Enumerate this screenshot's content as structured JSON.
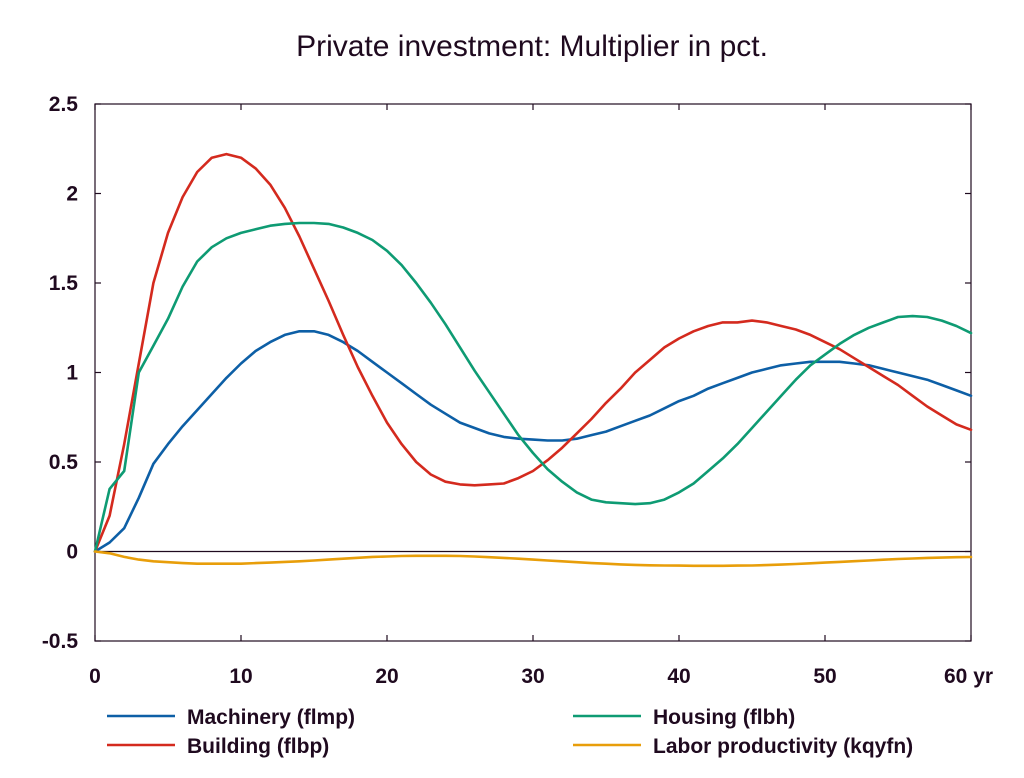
{
  "chart_data": {
    "type": "line",
    "title": "Private investment: Multiplier in pct.",
    "xlabel": "",
    "ylabel": "",
    "x_unit_label": "yr",
    "xlim": [
      0,
      60
    ],
    "ylim": [
      -0.5,
      2.5
    ],
    "xticks": [
      "0",
      "10",
      "20",
      "30",
      "40",
      "50",
      "60 yr"
    ],
    "yticks": [
      "2.5",
      "2",
      "1.5",
      "1",
      "0.5",
      "0",
      "-0.5"
    ],
    "grid": false,
    "legend_position": "bottom",
    "x": [
      0,
      1,
      2,
      3,
      4,
      5,
      6,
      7,
      8,
      9,
      10,
      11,
      12,
      13,
      14,
      15,
      16,
      17,
      18,
      19,
      20,
      21,
      22,
      23,
      24,
      25,
      26,
      27,
      28,
      29,
      30,
      31,
      32,
      33,
      34,
      35,
      36,
      37,
      38,
      39,
      40,
      41,
      42,
      43,
      44,
      45,
      46,
      47,
      48,
      49,
      50,
      51,
      52,
      53,
      54,
      55,
      56,
      57,
      58,
      59,
      60
    ],
    "series": [
      {
        "name": "Machinery (flmp)",
        "color": "#0d5fa6",
        "values": [
          0,
          0.05,
          0.13,
          0.3,
          0.49,
          0.6,
          0.7,
          0.79,
          0.88,
          0.97,
          1.05,
          1.12,
          1.17,
          1.21,
          1.23,
          1.23,
          1.21,
          1.17,
          1.12,
          1.06,
          1.0,
          0.94,
          0.88,
          0.82,
          0.77,
          0.72,
          0.69,
          0.66,
          0.64,
          0.63,
          0.625,
          0.62,
          0.62,
          0.63,
          0.65,
          0.67,
          0.7,
          0.73,
          0.76,
          0.8,
          0.84,
          0.87,
          0.91,
          0.94,
          0.97,
          1.0,
          1.02,
          1.04,
          1.05,
          1.06,
          1.06,
          1.06,
          1.05,
          1.04,
          1.02,
          1.0,
          0.98,
          0.96,
          0.93,
          0.9,
          0.87
        ]
      },
      {
        "name": "Building (flbp)",
        "color": "#d42a1e",
        "values": [
          0,
          0.2,
          0.6,
          1.05,
          1.5,
          1.78,
          1.98,
          2.12,
          2.2,
          2.22,
          2.2,
          2.14,
          2.05,
          1.92,
          1.76,
          1.58,
          1.4,
          1.21,
          1.03,
          0.87,
          0.72,
          0.6,
          0.5,
          0.43,
          0.39,
          0.375,
          0.37,
          0.375,
          0.38,
          0.41,
          0.45,
          0.51,
          0.58,
          0.66,
          0.74,
          0.83,
          0.91,
          1.0,
          1.07,
          1.14,
          1.19,
          1.23,
          1.26,
          1.28,
          1.28,
          1.29,
          1.28,
          1.26,
          1.24,
          1.21,
          1.17,
          1.13,
          1.08,
          1.03,
          0.98,
          0.93,
          0.87,
          0.81,
          0.76,
          0.71,
          0.68
        ]
      },
      {
        "name": "Housing (flbh)",
        "color": "#0e9b73",
        "values": [
          0,
          0.35,
          0.45,
          1.0,
          1.15,
          1.3,
          1.48,
          1.62,
          1.7,
          1.75,
          1.78,
          1.8,
          1.82,
          1.83,
          1.835,
          1.835,
          1.83,
          1.81,
          1.78,
          1.74,
          1.68,
          1.6,
          1.5,
          1.39,
          1.27,
          1.14,
          1.01,
          0.89,
          0.77,
          0.65,
          0.55,
          0.46,
          0.39,
          0.33,
          0.29,
          0.275,
          0.27,
          0.265,
          0.27,
          0.29,
          0.33,
          0.38,
          0.45,
          0.52,
          0.6,
          0.69,
          0.78,
          0.87,
          0.96,
          1.04,
          1.1,
          1.16,
          1.21,
          1.25,
          1.28,
          1.31,
          1.315,
          1.31,
          1.29,
          1.26,
          1.22
        ]
      },
      {
        "name": "Labor productivity (kqyfn)",
        "color": "#e89e0a",
        "values": [
          0,
          -0.01,
          -0.03,
          -0.045,
          -0.055,
          -0.06,
          -0.065,
          -0.068,
          -0.068,
          -0.068,
          -0.068,
          -0.065,
          -0.062,
          -0.058,
          -0.055,
          -0.05,
          -0.045,
          -0.04,
          -0.035,
          -0.03,
          -0.028,
          -0.025,
          -0.024,
          -0.024,
          -0.024,
          -0.025,
          -0.028,
          -0.032,
          -0.036,
          -0.04,
          -0.045,
          -0.05,
          -0.055,
          -0.06,
          -0.065,
          -0.068,
          -0.072,
          -0.075,
          -0.077,
          -0.078,
          -0.079,
          -0.08,
          -0.08,
          -0.08,
          -0.079,
          -0.078,
          -0.076,
          -0.073,
          -0.07,
          -0.066,
          -0.062,
          -0.058,
          -0.054,
          -0.05,
          -0.046,
          -0.042,
          -0.039,
          -0.036,
          -0.034,
          -0.032,
          -0.031
        ]
      }
    ]
  }
}
